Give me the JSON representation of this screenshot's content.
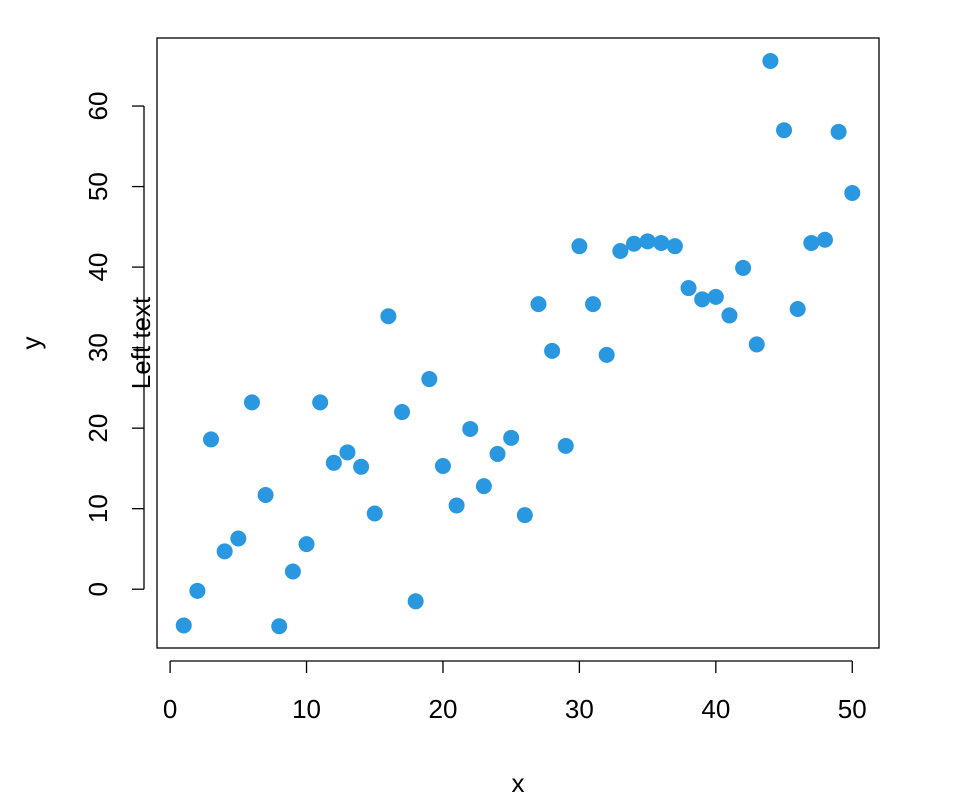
{
  "chart_data": {
    "type": "scatter",
    "x_label": "x",
    "y_label": "y",
    "annotation": "Left text",
    "color": "#2a98e0",
    "x": [
      1,
      2,
      3,
      4,
      5,
      6,
      7,
      8,
      9,
      10,
      11,
      12,
      13,
      14,
      15,
      16,
      17,
      18,
      19,
      20,
      21,
      22,
      23,
      24,
      25,
      26,
      27,
      28,
      29,
      30,
      31,
      32,
      33,
      34,
      35,
      36,
      37,
      38,
      39,
      40,
      41,
      42,
      43,
      44,
      45,
      46,
      47,
      48,
      49,
      50
    ],
    "y": [
      -4.5,
      -0.2,
      18.6,
      4.7,
      6.3,
      23.2,
      11.7,
      -4.6,
      2.2,
      5.6,
      23.2,
      15.7,
      17.0,
      15.2,
      9.4,
      33.9,
      22.0,
      -1.5,
      26.1,
      15.3,
      10.4,
      19.9,
      12.8,
      16.8,
      18.8,
      9.2,
      35.4,
      29.6,
      17.8,
      42.6,
      35.4,
      29.1,
      42.0,
      42.9,
      43.2,
      43.0,
      42.6,
      37.4,
      36.0,
      36.3,
      34.0,
      39.9,
      30.4,
      65.6,
      57.0,
      34.8,
      43.0,
      43.4,
      56.8,
      49.2
    ],
    "xlim": [
      -0.96,
      51.96
    ],
    "ylim": [
      -7.3,
      68.45
    ],
    "xticks": [
      0,
      10,
      20,
      30,
      40,
      50
    ],
    "yticks": [
      0,
      10,
      20,
      30,
      40,
      50,
      60
    ],
    "grid": false
  }
}
